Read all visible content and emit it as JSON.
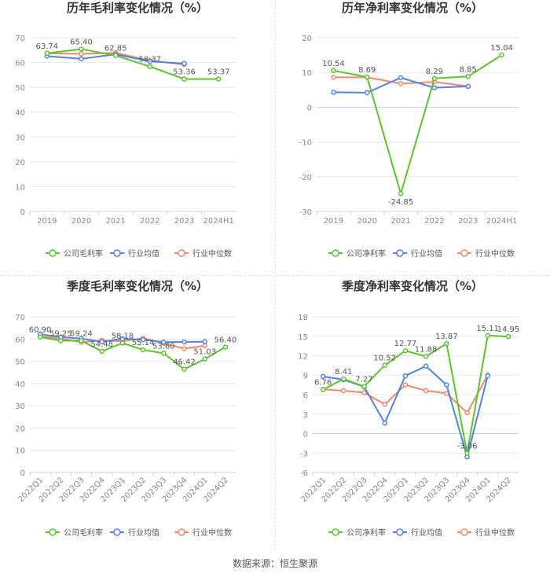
{
  "source": "数据来源：恒生聚源",
  "colors": {
    "company": "#5cc42c",
    "industry_avg": "#4f84e6",
    "industry_median": "#f08a6b",
    "grid": "#e8e8e8",
    "axis_text": "#888888",
    "label_text": "#555555"
  },
  "chart_data": [
    {
      "id": "annual-gross",
      "type": "line",
      "title": "历年毛利率变化情况（%）",
      "categories": [
        "2019",
        "2020",
        "2021",
        "2022",
        "2023",
        "2024H1"
      ],
      "ylim": [
        0,
        70
      ],
      "yticks": [
        0,
        10,
        20,
        30,
        40,
        50,
        60,
        70
      ],
      "series": [
        {
          "name": "公司毛利率",
          "key": "company",
          "values": [
            63.74,
            65.4,
            62.85,
            58.37,
            53.36,
            53.37
          ]
        },
        {
          "name": "行业均值",
          "key": "industry_avg",
          "values": [
            62.6,
            61.5,
            63.3,
            60.5,
            59.6,
            null
          ]
        },
        {
          "name": "行业中位数",
          "key": "industry_median",
          "values": [
            63.7,
            63.5,
            63.9,
            60.8,
            59.2,
            null
          ]
        }
      ],
      "labels": [
        "63.74",
        "65.40",
        "62.85",
        "58.37",
        "53.36",
        "53.37"
      ]
    },
    {
      "id": "annual-net",
      "type": "line",
      "title": "历年净利率变化情况（%）",
      "categories": [
        "2019",
        "2020",
        "2021",
        "2022",
        "2023",
        "2024H1"
      ],
      "ylim": [
        -30,
        20
      ],
      "yticks": [
        -30,
        -20,
        -10,
        0,
        10,
        20
      ],
      "series": [
        {
          "name": "公司净利率",
          "key": "company",
          "values": [
            10.54,
            8.69,
            -24.85,
            8.29,
            8.85,
            15.04
          ]
        },
        {
          "name": "行业均值",
          "key": "industry_avg",
          "values": [
            4.3,
            4.2,
            8.5,
            5.6,
            6.0,
            null
          ]
        },
        {
          "name": "行业中位数",
          "key": "industry_median",
          "values": [
            8.6,
            8.6,
            6.8,
            7.3,
            6.0,
            null
          ]
        }
      ],
      "labels": [
        "10.54",
        "8.69",
        "-24.85",
        "8.29",
        "8.85",
        "15.04"
      ]
    },
    {
      "id": "quarterly-gross",
      "type": "line",
      "title": "季度毛利率变化情况（%）",
      "categories": [
        "2022Q1",
        "2022Q2",
        "2022Q3",
        "2022Q4",
        "2023Q1",
        "2023Q2",
        "2023Q3",
        "2023Q4",
        "2024Q1",
        "2024Q2"
      ],
      "ylim": [
        0,
        70
      ],
      "yticks": [
        0,
        10,
        20,
        30,
        40,
        50,
        60,
        70
      ],
      "series": [
        {
          "name": "公司毛利率",
          "key": "company",
          "values": [
            60.9,
            59.25,
            59.24,
            54.48,
            58.18,
            55.14,
            53.6,
            46.42,
            51.03,
            56.4
          ]
        },
        {
          "name": "行业均值",
          "key": "industry_avg",
          "values": [
            62.2,
            60.9,
            60.2,
            58.8,
            60.1,
            59.7,
            58.6,
            58.7,
            58.8,
            null
          ]
        },
        {
          "name": "行业中位数",
          "key": "industry_median",
          "values": [
            61.3,
            60.2,
            58.6,
            59.4,
            59.0,
            60.4,
            58.1,
            55.7,
            57.0,
            null
          ]
        }
      ],
      "labels": [
        "60.90",
        "59.25",
        "59.24",
        "54.48",
        "58.18",
        "55.14",
        "53.60",
        "46.42",
        "51.03",
        "56.40"
      ]
    },
    {
      "id": "quarterly-net",
      "type": "line",
      "title": "季度净利率变化情况（%）",
      "categories": [
        "2022Q1",
        "2022Q2",
        "2022Q3",
        "2022Q4",
        "2023Q1",
        "2023Q2",
        "2023Q3",
        "2023Q4",
        "2024Q1",
        "2024Q2"
      ],
      "ylim": [
        -6,
        18
      ],
      "yticks": [
        -6,
        -3,
        0,
        3,
        6,
        9,
        12,
        15,
        18
      ],
      "series": [
        {
          "name": "公司净利率",
          "key": "company",
          "values": [
            6.76,
            8.41,
            7.27,
            10.52,
            12.77,
            11.88,
            13.87,
            -3.06,
            15.11,
            14.95
          ]
        },
        {
          "name": "行业均值",
          "key": "industry_avg",
          "values": [
            8.8,
            8.3,
            7.2,
            1.6,
            8.9,
            10.4,
            7.5,
            -3.6,
            8.9,
            null
          ]
        },
        {
          "name": "行业中位数",
          "key": "industry_median",
          "values": [
            6.8,
            6.6,
            6.3,
            4.5,
            7.5,
            6.6,
            6.2,
            3.2,
            9.0,
            null
          ]
        }
      ],
      "labels": [
        "6.76",
        "8.41",
        "7.27",
        "10.52",
        "12.77",
        "11.88",
        "13.87",
        "-3.06",
        "15.11",
        "14.95"
      ]
    }
  ]
}
